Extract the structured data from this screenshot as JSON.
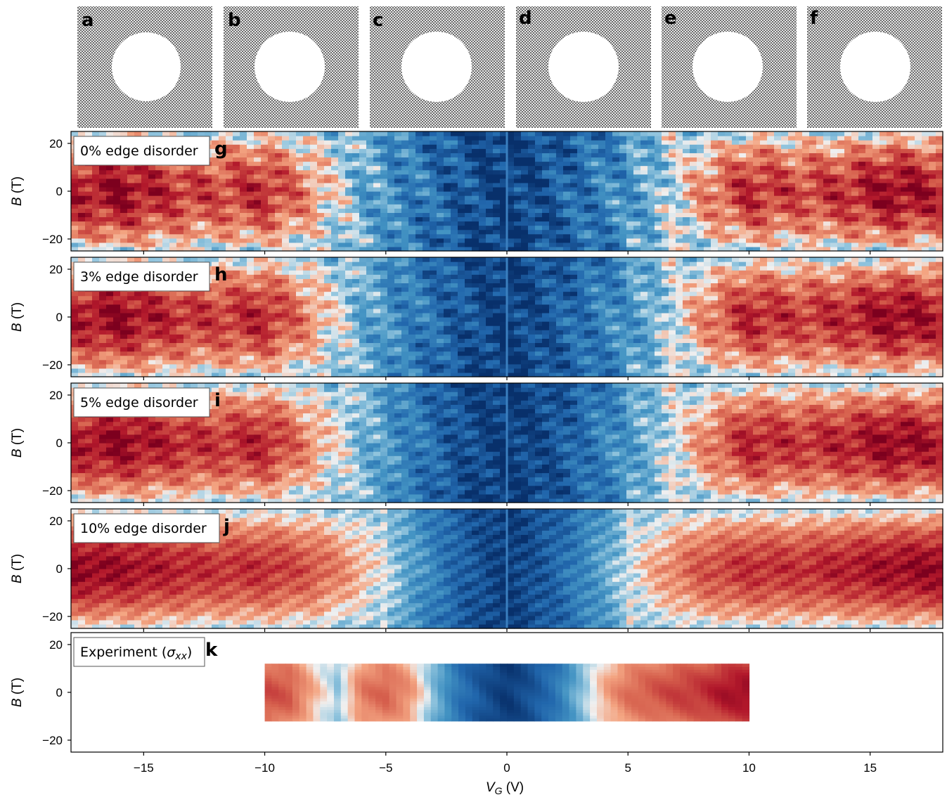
{
  "figure": {
    "lattice_panels": [
      {
        "letter": "a"
      },
      {
        "letter": "b"
      },
      {
        "letter": "c"
      },
      {
        "letter": "d"
      },
      {
        "letter": "e"
      },
      {
        "letter": "f"
      }
    ]
  },
  "chart_data": [
    {
      "type": "heatmap",
      "letter": "g",
      "annotation": "0% edge disorder",
      "disorder_percent": 0,
      "ylabel_var": "B",
      "ylabel_unit": " (T)",
      "yticks": [
        20,
        0,
        -20
      ],
      "ylim": [
        -25,
        25
      ],
      "xlim": [
        -18,
        18
      ],
      "x_range": [
        -18,
        18
      ],
      "y_range": [
        -25,
        25
      ],
      "colormap": "RdBu (red = high, blue = low)",
      "x": [
        -18,
        -16,
        -14,
        -12,
        -10,
        -8,
        -6,
        -4,
        -2,
        0,
        2,
        4,
        6,
        8,
        10,
        12,
        14,
        16,
        18
      ],
      "value_at_B0": [
        0.78,
        0.95,
        0.72,
        0.6,
        0.75,
        0.3,
        -0.3,
        -0.5,
        -0.75,
        -0.95,
        -0.75,
        -0.5,
        -0.3,
        0.3,
        0.75,
        0.6,
        0.72,
        0.95,
        0.78
      ]
    },
    {
      "type": "heatmap",
      "letter": "h",
      "annotation": "3% edge disorder",
      "disorder_percent": 3,
      "ylabel_var": "B",
      "ylabel_unit": " (T)",
      "yticks": [
        20,
        0,
        -20
      ],
      "ylim": [
        -25,
        25
      ],
      "xlim": [
        -18,
        18
      ],
      "x_range": [
        -18,
        18
      ],
      "y_range": [
        -25,
        25
      ],
      "colormap": "RdBu (red = high, blue = low)",
      "x": [
        -18,
        -16,
        -14,
        -12,
        -10,
        -8,
        -6,
        -4,
        -2,
        0,
        2,
        4,
        6,
        8,
        10,
        12,
        14,
        16,
        18
      ],
      "value_at_B0": [
        0.8,
        0.95,
        0.75,
        0.65,
        0.78,
        0.3,
        -0.3,
        -0.5,
        -0.75,
        -0.95,
        -0.75,
        -0.5,
        -0.3,
        0.3,
        0.78,
        0.65,
        0.75,
        0.95,
        0.8
      ]
    },
    {
      "type": "heatmap",
      "letter": "i",
      "annotation": "5% edge disorder",
      "disorder_percent": 5,
      "ylabel_var": "B",
      "ylabel_unit": " (T)",
      "yticks": [
        20,
        0,
        -20
      ],
      "ylim": [
        -25,
        25
      ],
      "xlim": [
        -18,
        18
      ],
      "x_range": [
        -18,
        18
      ],
      "y_range": [
        -25,
        25
      ],
      "colormap": "RdBu (red = high, blue = low)",
      "x": [
        -18,
        -16,
        -14,
        -12,
        -10,
        -8,
        -6,
        -4,
        -2,
        0,
        2,
        4,
        6,
        8,
        10,
        12,
        14,
        16,
        18
      ],
      "value_at_B0": [
        0.82,
        0.95,
        0.78,
        0.68,
        0.78,
        0.3,
        -0.25,
        -0.5,
        -0.8,
        -0.95,
        -0.8,
        -0.5,
        -0.25,
        0.3,
        0.78,
        0.68,
        0.78,
        0.95,
        0.82
      ]
    },
    {
      "type": "heatmap",
      "letter": "j",
      "annotation": "10% edge disorder",
      "disorder_percent": 10,
      "ylabel_var": "B",
      "ylabel_unit": " (T)",
      "yticks": [
        20,
        0,
        -20
      ],
      "ylim": [
        -25,
        25
      ],
      "xlim": [
        -18,
        18
      ],
      "x_range": [
        -18,
        18
      ],
      "y_range": [
        -25,
        25
      ],
      "colormap": "RdBu (red = high, blue = low)",
      "x": [
        -18,
        -16,
        -14,
        -12,
        -10,
        -8,
        -6,
        -4,
        -2,
        0,
        2,
        4,
        6,
        8,
        10,
        12,
        14,
        16,
        18
      ],
      "value_at_B0": [
        0.95,
        0.9,
        0.8,
        0.7,
        0.72,
        0.55,
        0.2,
        -0.3,
        -0.7,
        -0.95,
        -0.7,
        -0.3,
        0.2,
        0.55,
        0.72,
        0.7,
        0.8,
        0.9,
        0.95
      ]
    },
    {
      "type": "heatmap",
      "letter": "k",
      "annotation": "Experiment (",
      "annotation_symbol": "σ",
      "annotation_sub": "xx",
      "annotation_close": ")",
      "experiment": true,
      "ylabel_var": "B",
      "ylabel_unit": " (T)",
      "yticks": [
        20,
        0,
        -20
      ],
      "ylim": [
        -25,
        25
      ],
      "xlim": [
        -18,
        18
      ],
      "x_range": [
        -10,
        10
      ],
      "y_range": [
        -12,
        12
      ],
      "colormap": "RdBu (red = high, blue = low)",
      "x": [
        -10,
        -9,
        -8,
        -7,
        -6,
        -5,
        -4,
        -3,
        -2,
        -1,
        0,
        1,
        2,
        3,
        4,
        5,
        6,
        7,
        8,
        9,
        10
      ],
      "value_at_B0": [
        0.6,
        0.55,
        0.2,
        -0.15,
        0.4,
        0.5,
        0.3,
        -0.2,
        -0.6,
        -0.8,
        -0.95,
        -0.8,
        -0.6,
        -0.2,
        0.2,
        0.45,
        0.55,
        0.65,
        0.7,
        0.85,
        0.9
      ],
      "xticks": [
        -15,
        -10,
        -5,
        0,
        5,
        10,
        15
      ],
      "xlabel_var": "V",
      "xlabel_sub": "G",
      "xlabel_unit": " (V)"
    }
  ]
}
